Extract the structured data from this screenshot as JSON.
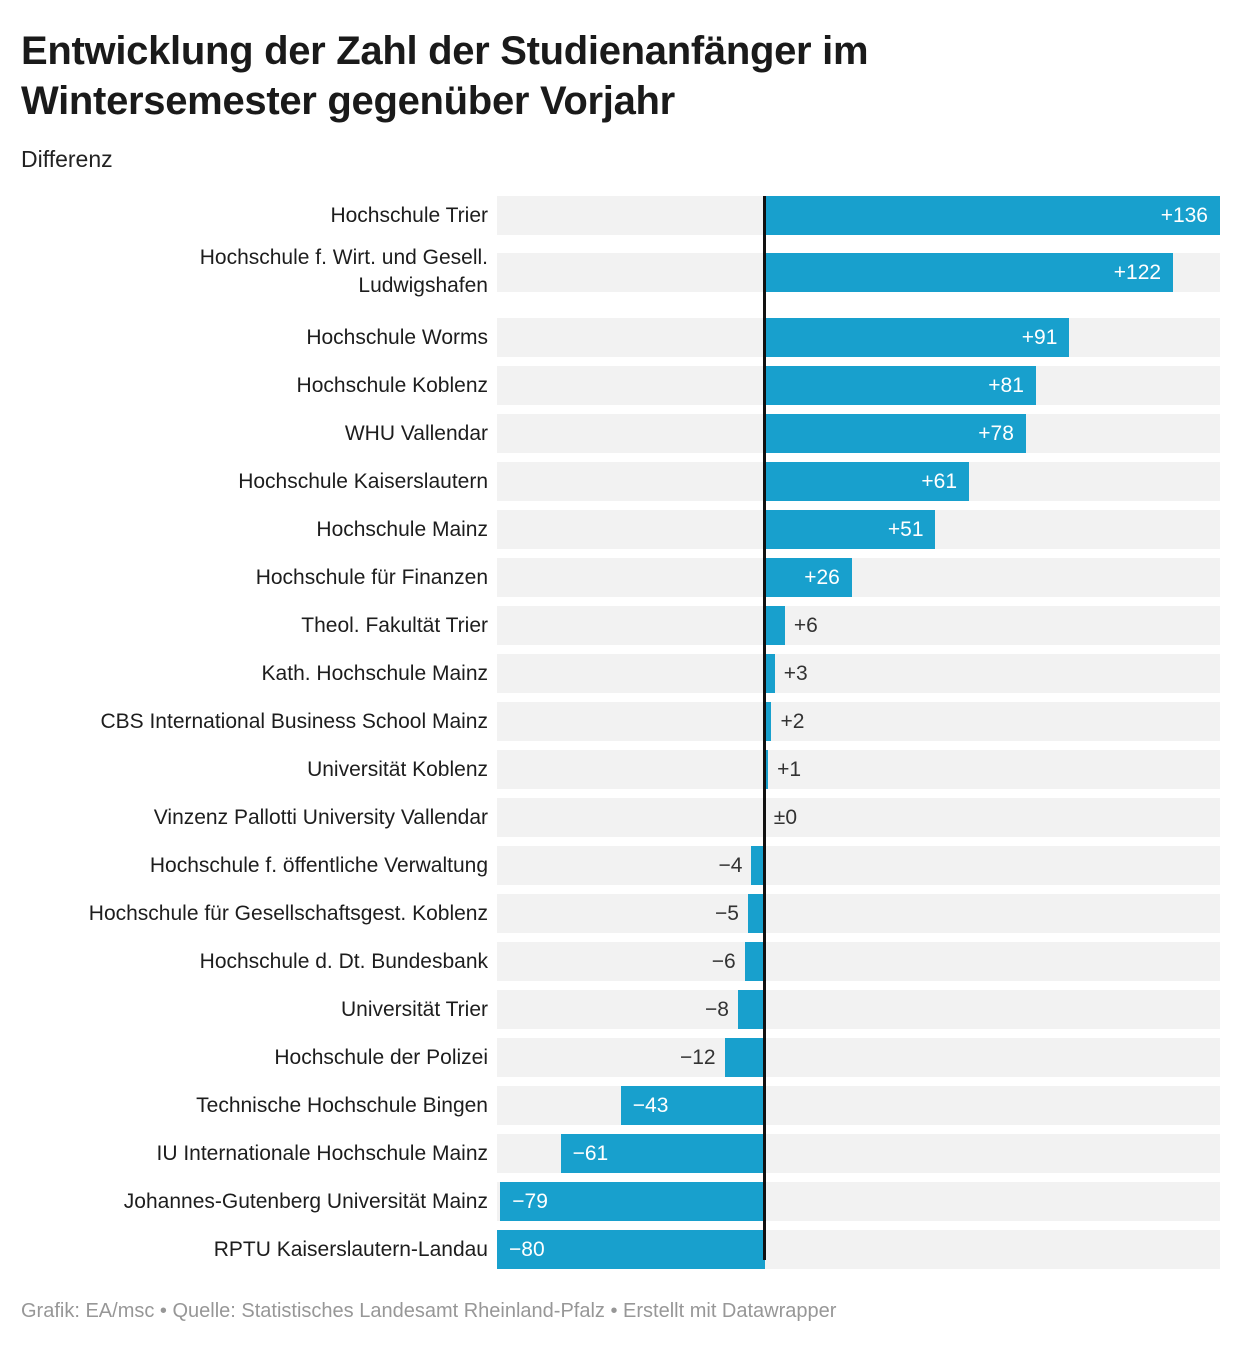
{
  "header": {
    "title": "Entwicklung der Zahl der Studienanfänger im\nWintersemester gegenüber Vorjahr",
    "subtitle": "Differenz"
  },
  "footer": {
    "credits": "Grafik: EA/msc • Quelle: Statistisches Landesamt Rheinland-Pfalz • Erstellt mit Datawrapper"
  },
  "chart_data": {
    "type": "bar",
    "orientation": "horizontal",
    "title": "Entwicklung der Zahl der Studienanfänger im Wintersemester gegenüber Vorjahr",
    "xlabel": "Differenz",
    "ylabel": "",
    "xlim": [
      -80,
      136
    ],
    "grid": false,
    "legend": false,
    "bar_color": "#18a0cd",
    "row_background_color": "#f2f2f2",
    "zero_line_color": "#111111",
    "categories": [
      "Hochschule Trier",
      "Hochschule f. Wirt. und Gesell. Ludwigshafen",
      "Hochschule Worms",
      "Hochschule Koblenz",
      "WHU Vallendar",
      "Hochschule Kaiserslautern",
      "Hochschule Mainz",
      "Hochschule für Finanzen",
      "Theol. Fakultät Trier",
      "Kath. Hochschule Mainz",
      "CBS International Business School Mainz",
      "Universität Koblenz",
      "Vinzenz Pallotti University Vallendar",
      "Hochschule f. öffentliche Verwaltung",
      "Hochschule für Gesellschaftsgest. Koblenz",
      "Hochschule d. Dt. Bundesbank",
      "Universität Trier",
      "Hochschule der Polizei",
      "Technische Hochschule Bingen",
      "IU Internationale Hochschule Mainz",
      "Johannes-Gutenberg Universität Mainz",
      "RPTU Kaiserslautern-Landau"
    ],
    "values": [
      136,
      122,
      91,
      81,
      78,
      61,
      51,
      26,
      6,
      3,
      2,
      1,
      0,
      -4,
      -5,
      -6,
      -8,
      -12,
      -43,
      -61,
      -79,
      -80
    ],
    "rows": [
      {
        "category": "Hochschule Trier",
        "value": 136,
        "label": "+136"
      },
      {
        "category": "Hochschule f. Wirt. und Gesell.\nLudwigshafen",
        "value": 122,
        "label": "+122"
      },
      {
        "category": "Hochschule Worms",
        "value": 91,
        "label": "+91"
      },
      {
        "category": "Hochschule Koblenz",
        "value": 81,
        "label": "+81"
      },
      {
        "category": "WHU Vallendar",
        "value": 78,
        "label": "+78"
      },
      {
        "category": "Hochschule Kaiserslautern",
        "value": 61,
        "label": "+61"
      },
      {
        "category": "Hochschule Mainz",
        "value": 51,
        "label": "+51"
      },
      {
        "category": "Hochschule für Finanzen",
        "value": 26,
        "label": "+26"
      },
      {
        "category": "Theol. Fakultät Trier",
        "value": 6,
        "label": "+6"
      },
      {
        "category": "Kath. Hochschule Mainz",
        "value": 3,
        "label": "+3"
      },
      {
        "category": "CBS International Business School Mainz",
        "value": 2,
        "label": "+2"
      },
      {
        "category": "Universität Koblenz",
        "value": 1,
        "label": "+1"
      },
      {
        "category": "Vinzenz Pallotti University Vallendar",
        "value": 0,
        "label": "±0"
      },
      {
        "category": "Hochschule f. öffentliche Verwaltung",
        "value": -4,
        "label": "−4"
      },
      {
        "category": "Hochschule für Gesellschaftsgest. Koblenz",
        "value": -5,
        "label": "−5"
      },
      {
        "category": "Hochschule d. Dt. Bundesbank",
        "value": -6,
        "label": "−6"
      },
      {
        "category": "Universität Trier",
        "value": -8,
        "label": "−8"
      },
      {
        "category": "Hochschule der Polizei",
        "value": -12,
        "label": "−12"
      },
      {
        "category": "Technische Hochschule Bingen",
        "value": -43,
        "label": "−43"
      },
      {
        "category": "IU Internationale Hochschule Mainz",
        "value": -61,
        "label": "−61"
      },
      {
        "category": "Johannes-Gutenberg Universität Mainz",
        "value": -79,
        "label": "−79"
      },
      {
        "category": "RPTU Kaiserslautern-Landau",
        "value": -80,
        "label": "−80"
      }
    ]
  }
}
